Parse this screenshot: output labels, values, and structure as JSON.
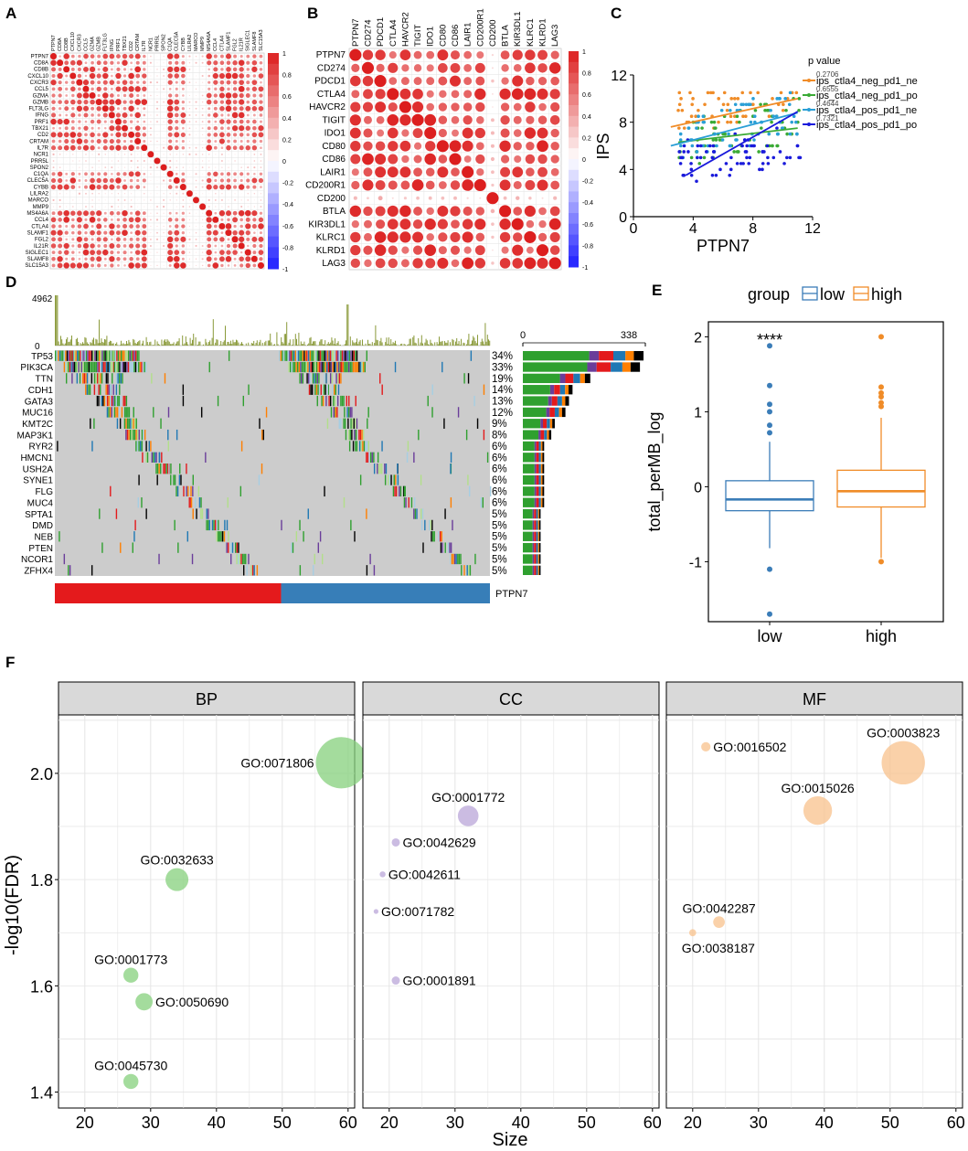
{
  "panel_letters": [
    "A",
    "B",
    "C",
    "D",
    "E",
    "F"
  ],
  "chart_data": [
    {
      "panel": "A",
      "type": "heatmap",
      "title": "",
      "genes": [
        "PTPN7",
        "CD8A",
        "CD8B",
        "CXCL10",
        "CXCR3",
        "CCL5",
        "GZMA",
        "GZMB",
        "FLT3LG",
        "IFNG",
        "PRF1",
        "TBX21",
        "CD2",
        "CRTAM",
        "IL7R",
        "NCR1",
        "PRR5L",
        "SPON2",
        "C1QA",
        "CLEC5A",
        "CYBB",
        "LILRA2",
        "MARCO",
        "MMP9",
        "MS4A6A",
        "CCL4",
        "CTLA4",
        "SLAMF1",
        "FGL2",
        "IL21R",
        "SIGLEC1",
        "SLAMF8",
        "SLC15A3"
      ],
      "top_labels": [
        "PTPN7",
        "CD8A",
        "CD8B",
        "CXCL10",
        "CXCR3",
        "CCL5",
        "GZMA",
        "GZMB",
        "FLT3LG",
        "IFNG",
        "PRF1",
        "TBX21",
        "CD2",
        "CRTAM",
        "IL7R",
        "NCR1",
        "PRR5L",
        "SPON2",
        "C1QA",
        "CLEC5A",
        "CYBB",
        "LILRA2",
        "MARCO",
        "MMP9",
        "MS4A6A",
        "CCL4",
        "CTLA4",
        "SLAMF1",
        "FGL2",
        "IL21R",
        "SIGLEC1",
        "SLAMF8",
        "SLC15A3"
      ],
      "low_corr_genes": [
        "PRR5L",
        "SPON2",
        "NCR1",
        "MMP9",
        "MARCO",
        "LILRA2"
      ],
      "colorbar": {
        "min": -1,
        "max": 1,
        "ticks": [
          "1",
          "0.8",
          "0.6",
          "0.4",
          "0.2",
          "0",
          "-0.2",
          "-0.4",
          "-0.6",
          "-0.8",
          "-1"
        ]
      }
    },
    {
      "panel": "B",
      "type": "heatmap",
      "title": "",
      "genes": [
        "PTPN7",
        "CD274",
        "PDCD1",
        "CTLA4",
        "HAVCR2",
        "TIGIT",
        "IDO1",
        "CD80",
        "CD86",
        "LAIR1",
        "CD200R1",
        "CD200",
        "BTLA",
        "KIR3DL1",
        "KLRC1",
        "KLRD1",
        "LAG3"
      ],
      "low_corr_genes": [
        "CD200"
      ],
      "colorbar": {
        "min": -1,
        "max": 1,
        "ticks": [
          "1",
          "0.8",
          "0.6",
          "0.4",
          "0.2",
          "0",
          "-0.2",
          "-0.4",
          "-0.6",
          "-0.8",
          "-1"
        ]
      }
    },
    {
      "panel": "C",
      "type": "scatter",
      "title": "",
      "xlabel": "PTPN7",
      "ylabel": "IPS",
      "xlim": [
        0,
        12
      ],
      "ylim": [
        0,
        12
      ],
      "xticks": [
        "0",
        "4",
        "8",
        "12"
      ],
      "yticks": [
        "0",
        "4",
        "8",
        "12"
      ],
      "legend_title": "p value",
      "series": [
        {
          "name": "ips_ctla4_neg_pd1_ne",
          "p": "0.2706",
          "color": "#f08c28",
          "level": 9.5,
          "fit": [
            [
              2.5,
              7.6
            ],
            [
              11,
              10.0
            ]
          ]
        },
        {
          "name": "ips_ctla4_neg_pd1_po",
          "p": "0.6555",
          "color": "#3aaa35",
          "level": 7.0,
          "fit": [
            [
              3,
              6.3
            ],
            [
              11,
              7.5
            ]
          ]
        },
        {
          "name": "ips_ctla4_pos_pd1_ne",
          "p": "0.4644",
          "color": "#2a9fd6",
          "level": 7.5,
          "fit": [
            [
              2.5,
              6.0
            ],
            [
              11,
              8.8
            ]
          ]
        },
        {
          "name": "ips_ctla4_pos_pd1_po",
          "p": "0.7321",
          "color": "#1a1adb",
          "level": 5.0,
          "fit": [
            [
              3.5,
              3.5
            ],
            [
              11,
              8.9
            ]
          ]
        }
      ]
    },
    {
      "panel": "D",
      "type": "bar",
      "title": "Oncoplot",
      "tmb_max_label": "4962",
      "tmb_min_label": "0",
      "freq_axis_labels": [
        "0",
        "338"
      ],
      "genes": [
        "TP53",
        "PIK3CA",
        "TTN",
        "CDH1",
        "GATA3",
        "MUC16",
        "KMT2C",
        "MAP3K1",
        "RYR2",
        "HMCN1",
        "USH2A",
        "SYNE1",
        "FLG",
        "MUC4",
        "SPTA1",
        "DMD",
        "NEB",
        "PTEN",
        "NCOR1",
        "ZFHX4"
      ],
      "percents": [
        "34%",
        "33%",
        "19%",
        "14%",
        "13%",
        "12%",
        "9%",
        "8%",
        "6%",
        "6%",
        "6%",
        "6%",
        "6%",
        "6%",
        "5%",
        "5%",
        "5%",
        "5%",
        "5%",
        "5%"
      ],
      "values": [
        34,
        33,
        19,
        14,
        13,
        12,
        9,
        8,
        6,
        6,
        6,
        6,
        6,
        6,
        5,
        5,
        5,
        5,
        5,
        5
      ],
      "annotation_label": "PTPN7",
      "annotation_groups": [
        {
          "name": "high",
          "color": "#e41a1c",
          "fraction": 0.52
        },
        {
          "name": "low",
          "color": "#377eb8",
          "fraction": 0.48
        }
      ]
    },
    {
      "panel": "E",
      "type": "box",
      "title": "",
      "legend_title": "group",
      "categories": [
        "low",
        "high"
      ],
      "colors": [
        "#3b7db8",
        "#f08c28"
      ],
      "xlabel": "",
      "ylabel": "total_perMB_log",
      "ylim": [
        -1.8,
        2.2
      ],
      "yticks": [
        -1,
        0,
        1,
        2
      ],
      "significance": "****",
      "boxes": [
        {
          "name": "low",
          "q1": -0.32,
          "median": -0.17,
          "q3": 0.08,
          "whisker_low": -0.82,
          "whisker_high": 0.6,
          "outliers": [
            1.88,
            1.35,
            1.1,
            1.0,
            0.82,
            0.72,
            -1.1,
            -1.7
          ]
        },
        {
          "name": "high",
          "q1": -0.27,
          "median": -0.06,
          "q3": 0.22,
          "whisker_low": -0.95,
          "whisker_high": 0.92,
          "outliers": [
            2.0,
            1.33,
            1.25,
            1.2,
            1.12,
            1.07,
            -1.0
          ]
        }
      ]
    },
    {
      "panel": "F",
      "type": "scatter",
      "title": "",
      "xlabel": "Size",
      "ylabel": "-log10(FDR)",
      "xlim": [
        16,
        61
      ],
      "ylim": [
        1.37,
        2.11
      ],
      "xticks": [
        20,
        30,
        40,
        50,
        60
      ],
      "yticks": [
        1.4,
        1.6,
        1.8,
        2.0
      ],
      "ytick_labels": [
        "1.4",
        "1.6",
        "1.8",
        "2.0"
      ],
      "facets": [
        {
          "name": "BP",
          "color": "#86d07c",
          "points": [
            {
              "label": "GO:0071806",
              "size": 59,
              "y": 2.02
            },
            {
              "label": "GO:0032633",
              "size": 34,
              "y": 1.8
            },
            {
              "label": "GO:0001773",
              "size": 27,
              "y": 1.62
            },
            {
              "label": "GO:0050690",
              "size": 29,
              "y": 1.57
            },
            {
              "label": "GO:0045730",
              "size": 27,
              "y": 1.42
            }
          ]
        },
        {
          "name": "CC",
          "color": "#b9a6d8",
          "points": [
            {
              "label": "GO:0001772",
              "size": 32,
              "y": 1.92
            },
            {
              "label": "GO:0042629",
              "size": 21,
              "y": 1.87
            },
            {
              "label": "GO:0042611",
              "size": 19,
              "y": 1.81
            },
            {
              "label": "GO:0071782",
              "size": 18,
              "y": 1.74
            },
            {
              "label": "GO:0001891",
              "size": 21,
              "y": 1.61
            }
          ]
        },
        {
          "name": "MF",
          "color": "#f8c28c",
          "points": [
            {
              "label": "GO:0016502",
              "size": 22,
              "y": 2.05
            },
            {
              "label": "GO:0003823",
              "size": 52,
              "y": 2.02
            },
            {
              "label": "GO:0015026",
              "size": 39,
              "y": 1.93
            },
            {
              "label": "GO:0042287",
              "size": 24,
              "y": 1.72
            },
            {
              "label": "GO:0038187",
              "size": 20,
              "y": 1.7
            }
          ]
        }
      ]
    }
  ]
}
